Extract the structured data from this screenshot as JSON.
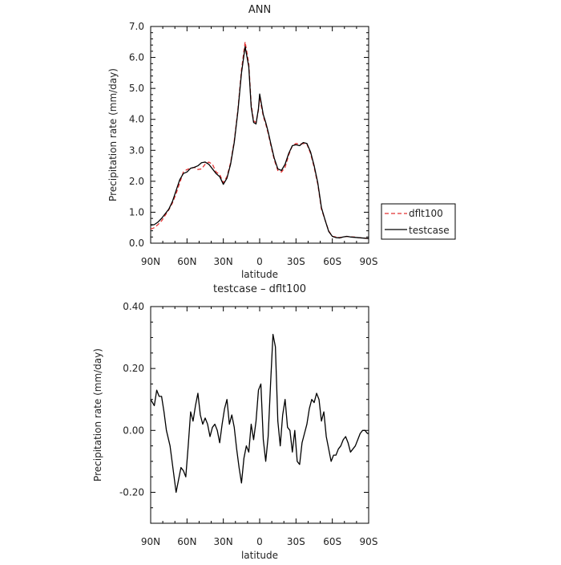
{
  "chart_data": [
    {
      "type": "line",
      "title": "ANN",
      "xlabel": "latitude",
      "ylabel": "Precipitation rate (mm/day)",
      "xlim": [
        90,
        -90
      ],
      "ylim": [
        0.0,
        7.0
      ],
      "xticks": [
        90,
        60,
        30,
        0,
        -30,
        -60,
        -90
      ],
      "xticklabels": [
        "90N",
        "60N",
        "30N",
        "0",
        "30S",
        "60S",
        "90S"
      ],
      "yticks": [
        0.0,
        1.0,
        2.0,
        3.0,
        4.0,
        5.0,
        6.0,
        7.0
      ],
      "yticklabels": [
        "0.0",
        "1.0",
        "2.0",
        "3.0",
        "4.0",
        "5.0",
        "6.0",
        "7.0"
      ],
      "legend_position": "right",
      "grid": false,
      "series": [
        {
          "name": "dflt100",
          "color": "#e23232",
          "dash": "dashed",
          "x": [
            90,
            87,
            84,
            81,
            78,
            75,
            72,
            69,
            66,
            63,
            60,
            57,
            54,
            51,
            48,
            45,
            42,
            39,
            36,
            33,
            30,
            27,
            24,
            21,
            18,
            15,
            12,
            9,
            7,
            5,
            3,
            1,
            0,
            -1,
            -3,
            -5,
            -7,
            -9,
            -12,
            -15,
            -18,
            -21,
            -24,
            -27,
            -30,
            -33,
            -36,
            -39,
            -42,
            -45,
            -48,
            -51,
            -54,
            -57,
            -60,
            -63,
            -66,
            -69,
            -72,
            -75,
            -78,
            -81,
            -84,
            -87,
            -90
          ],
          "y": [
            0.45,
            0.5,
            0.6,
            0.72,
            0.9,
            1.08,
            1.3,
            1.6,
            1.95,
            2.3,
            2.38,
            2.42,
            2.45,
            2.38,
            2.4,
            2.55,
            2.62,
            2.55,
            2.3,
            2.22,
            1.95,
            2.15,
            2.6,
            3.3,
            4.3,
            5.6,
            6.5,
            5.8,
            4.5,
            3.95,
            3.9,
            4.3,
            4.75,
            4.5,
            4.1,
            3.85,
            3.55,
            3.2,
            2.7,
            2.35,
            2.3,
            2.45,
            2.85,
            3.15,
            3.22,
            3.2,
            3.22,
            3.2,
            2.9,
            2.45,
            1.9,
            1.1,
            0.75,
            0.4,
            0.22,
            0.2,
            0.18,
            0.2,
            0.22,
            0.2,
            0.2,
            0.18,
            0.17,
            0.16,
            0.15
          ]
        },
        {
          "name": "testcase",
          "color": "#000000",
          "dash": "solid",
          "x": [
            90,
            87,
            84,
            81,
            78,
            75,
            72,
            69,
            66,
            63,
            60,
            57,
            54,
            51,
            48,
            45,
            42,
            39,
            36,
            33,
            30,
            27,
            24,
            21,
            18,
            15,
            12,
            9,
            7,
            5,
            3,
            1,
            0,
            -1,
            -3,
            -5,
            -7,
            -9,
            -12,
            -15,
            -18,
            -21,
            -24,
            -27,
            -30,
            -33,
            -36,
            -39,
            -42,
            -45,
            -48,
            -51,
            -54,
            -57,
            -60,
            -63,
            -66,
            -69,
            -72,
            -75,
            -78,
            -81,
            -84,
            -87,
            -90
          ],
          "y": [
            0.58,
            0.6,
            0.68,
            0.8,
            0.95,
            1.1,
            1.35,
            1.7,
            2.05,
            2.25,
            2.3,
            2.42,
            2.45,
            2.5,
            2.6,
            2.62,
            2.55,
            2.4,
            2.25,
            2.15,
            1.9,
            2.1,
            2.55,
            3.25,
            4.25,
            5.5,
            6.35,
            5.7,
            4.4,
            3.9,
            3.85,
            4.35,
            4.82,
            4.6,
            4.15,
            3.9,
            3.6,
            3.25,
            2.75,
            2.4,
            2.35,
            2.55,
            2.9,
            3.15,
            3.18,
            3.15,
            3.25,
            3.22,
            2.95,
            2.5,
            1.95,
            1.15,
            0.75,
            0.38,
            0.22,
            0.18,
            0.17,
            0.2,
            0.22,
            0.2,
            0.19,
            0.18,
            0.17,
            0.16,
            0.15
          ]
        }
      ]
    },
    {
      "type": "line",
      "title": "testcase – dflt100",
      "xlabel": "latitude",
      "ylabel": "Precipitation rate (mm/day)",
      "xlim": [
        90,
        -90
      ],
      "ylim": [
        -0.3,
        0.4
      ],
      "xticks": [
        90,
        60,
        30,
        0,
        -30,
        -60,
        -90
      ],
      "xticklabels": [
        "90N",
        "60N",
        "30N",
        "0",
        "30S",
        "60S",
        "90S"
      ],
      "yticks": [
        -0.2,
        0.0,
        0.2,
        0.4
      ],
      "yticklabels": [
        "-0.20",
        "0.00",
        "0.20",
        "0.40"
      ],
      "grid": false,
      "series": [
        {
          "color": "#000000",
          "dash": "solid",
          "x": [
            90,
            87,
            85,
            83,
            81,
            79,
            77,
            74,
            71,
            69,
            67,
            65,
            63,
            61,
            59,
            57,
            55,
            53,
            51,
            49,
            47,
            45,
            43,
            41,
            39,
            37,
            35,
            33,
            31,
            29,
            27,
            25,
            23,
            21,
            19,
            17,
            15,
            13,
            11,
            9,
            7,
            5,
            3,
            1,
            -1,
            -3,
            -5,
            -7,
            -9,
            -11,
            -13,
            -15,
            -17,
            -19,
            -21,
            -23,
            -25,
            -27,
            -29,
            -31,
            -33,
            -35,
            -37,
            -39,
            -41,
            -43,
            -45,
            -47,
            -49,
            -51,
            -53,
            -55,
            -57,
            -59,
            -61,
            -63,
            -65,
            -67,
            -69,
            -71,
            -73,
            -75,
            -77,
            -79,
            -81,
            -83,
            -85,
            -87,
            -89,
            -90
          ],
          "y": [
            0.1,
            0.08,
            0.13,
            0.11,
            0.11,
            0.06,
            -0.0,
            -0.05,
            -0.14,
            -0.2,
            -0.16,
            -0.12,
            -0.13,
            -0.15,
            -0.05,
            0.06,
            0.03,
            0.08,
            0.12,
            0.05,
            0.02,
            0.04,
            0.02,
            -0.02,
            0.01,
            0.02,
            0.0,
            -0.04,
            0.02,
            0.07,
            0.1,
            0.02,
            0.05,
            0.01,
            -0.06,
            -0.12,
            -0.17,
            -0.09,
            -0.05,
            -0.07,
            0.02,
            -0.03,
            0.03,
            0.13,
            0.15,
            -0.03,
            -0.1,
            -0.02,
            0.15,
            0.31,
            0.27,
            0.03,
            -0.05,
            0.05,
            0.1,
            0.01,
            -0.0,
            -0.07,
            0.0,
            -0.1,
            -0.11,
            -0.04,
            -0.01,
            0.02,
            0.07,
            0.1,
            0.09,
            0.12,
            0.1,
            0.03,
            0.06,
            -0.02,
            -0.06,
            -0.1,
            -0.08,
            -0.08,
            -0.06,
            -0.05,
            -0.03,
            -0.02,
            -0.04,
            -0.07,
            -0.06,
            -0.05,
            -0.03,
            -0.01,
            0.0,
            0.0,
            -0.01,
            -0.01
          ]
        }
      ]
    }
  ]
}
